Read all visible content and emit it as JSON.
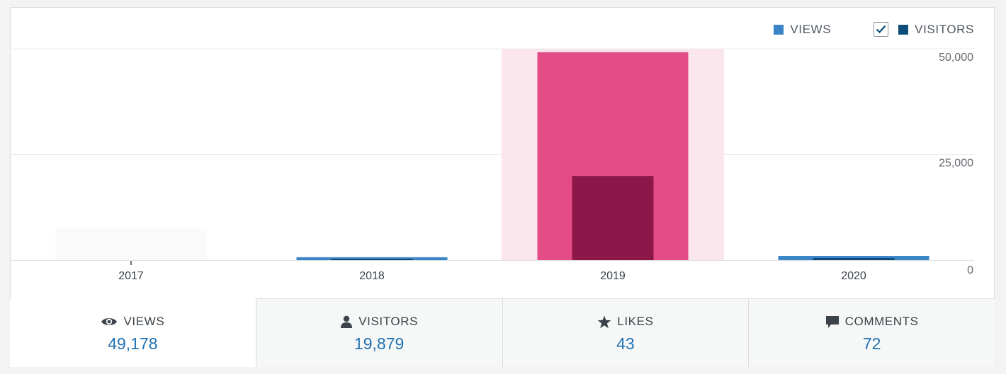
{
  "legend": {
    "views_label": "VIEWS",
    "visitors_label": "VISITORS",
    "visitors_checked": true
  },
  "chart_data": {
    "type": "bar",
    "categories": [
      "2017",
      "2018",
      "2019",
      "2020"
    ],
    "series": [
      {
        "name": "VIEWS",
        "values": [
          0,
          700,
          49178,
          1000
        ]
      },
      {
        "name": "VISITORS",
        "values": [
          0,
          300,
          19879,
          500
        ]
      }
    ],
    "ylim": [
      0,
      50000
    ],
    "yticks": [
      0,
      25000,
      50000
    ],
    "ytick_labels": [
      "0",
      "25,000",
      "50,000"
    ],
    "selected_category": "2019",
    "grid": true,
    "legend_position": "top-right"
  },
  "colors": {
    "views": "#3a84c8",
    "visitors": "#0e4d7a",
    "views_selected": "#e34c84",
    "visitors_selected": "#8c1749",
    "selected_band": "#fbe6ee",
    "faint_band": "#fafafa",
    "grid": "#ececec",
    "value": "#2271b1"
  },
  "tabs": [
    {
      "label": "VIEWS",
      "value": "49,178",
      "icon": "eye-icon",
      "active": true
    },
    {
      "label": "VISITORS",
      "value": "19,879",
      "icon": "person-icon",
      "active": false
    },
    {
      "label": "LIKES",
      "value": "43",
      "icon": "star-icon",
      "active": false
    },
    {
      "label": "COMMENTS",
      "value": "72",
      "icon": "comment-icon",
      "active": false
    }
  ]
}
